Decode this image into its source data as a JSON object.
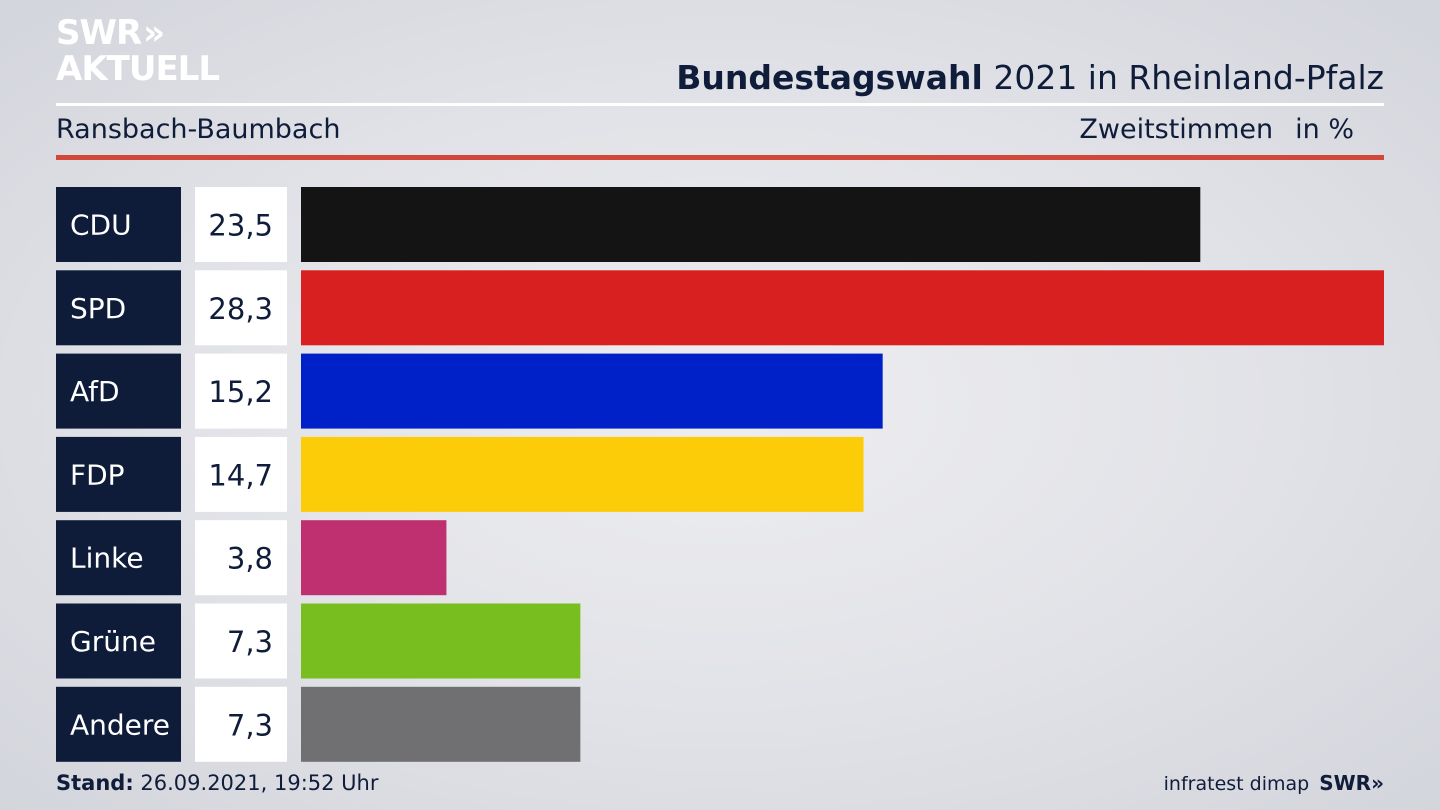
{
  "header": {
    "logo_line1": "SWR",
    "logo_chevrons": "»",
    "logo_line2": "AKTUELL",
    "title_bold": "Bundestagswahl",
    "title_rest": " 2021 in Rheinland-Pfalz",
    "subtitle": "Ransbach-Baumbach",
    "measure": "Zweitstimmen",
    "unit": "in %"
  },
  "footer": {
    "stand_label": "Stand:",
    "stand_value": " 26.09.2021, 19:52 Uhr",
    "source": "infratest dimap",
    "brand": "SWR»"
  },
  "colors": {
    "label_bg": "#0e1c3a",
    "value_bg": "#ffffff",
    "red_rule": "#d2473a"
  },
  "chart_data": {
    "type": "bar",
    "orientation": "horizontal",
    "title": "Bundestagswahl 2021 in Rheinland-Pfalz",
    "subtitle": "Ransbach-Baumbach",
    "measure": "Zweitstimmen",
    "unit": "in %",
    "categories": [
      "CDU",
      "SPD",
      "AfD",
      "FDP",
      "Linke",
      "Grüne",
      "Andere"
    ],
    "values": [
      23.5,
      28.3,
      15.2,
      14.7,
      3.8,
      7.3,
      7.3
    ],
    "value_labels": [
      "23,5",
      "28,3",
      "15,2",
      "14,7",
      "3,8",
      "7,3",
      "7,3"
    ],
    "colors": [
      "#141414",
      "#d7201f",
      "#0021c7",
      "#fdcc08",
      "#bf3071",
      "#78be1e",
      "#707072"
    ],
    "xlim": [
      0,
      28.3
    ]
  }
}
